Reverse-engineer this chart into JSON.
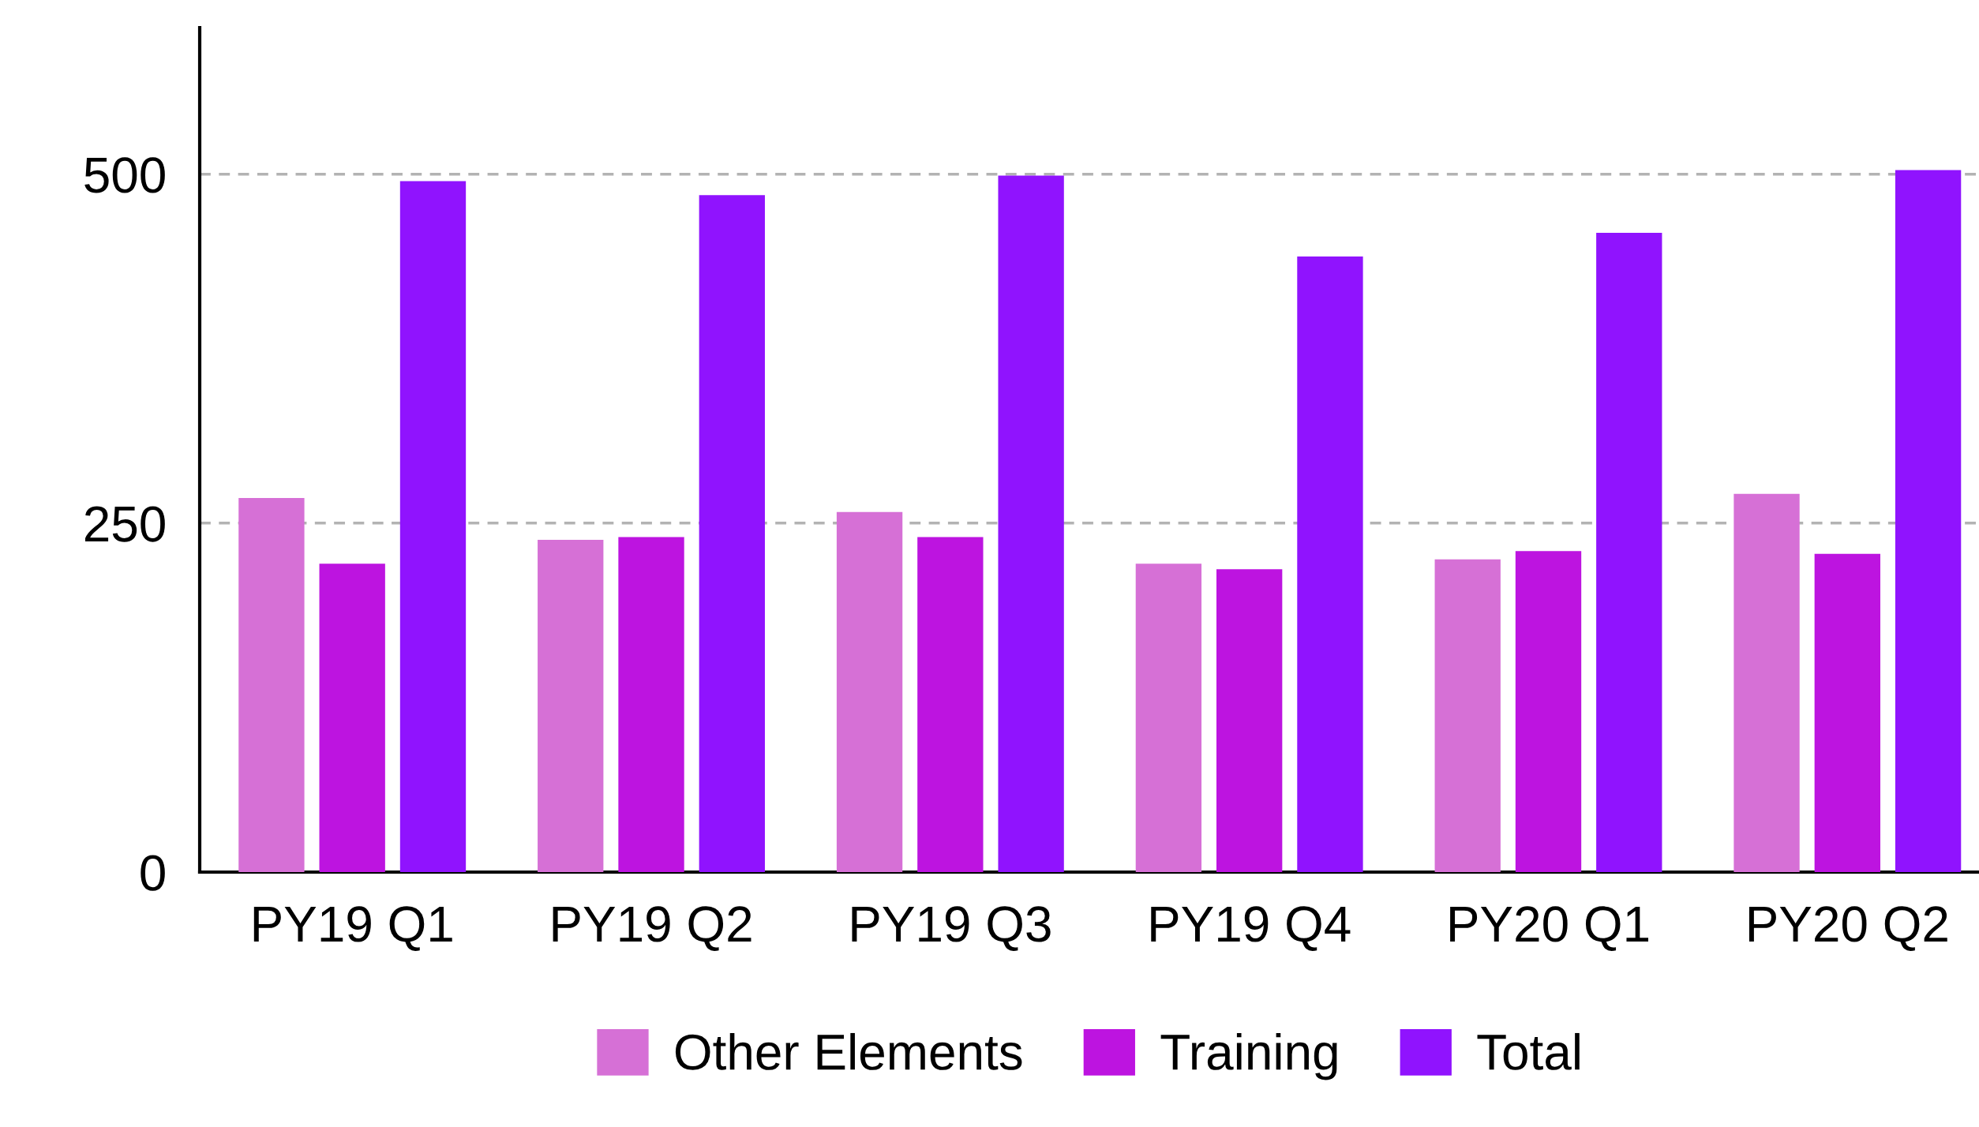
{
  "chart_data": {
    "type": "bar",
    "categories": [
      "PY19 Q1",
      "PY19 Q2",
      "PY19 Q3",
      "PY19 Q4",
      "PY20 Q1",
      "PY20 Q2"
    ],
    "series": [
      {
        "name": "Other Elements",
        "color": "#d670d6",
        "values": [
          268,
          238,
          258,
          221,
          224,
          271
        ]
      },
      {
        "name": "Training",
        "color": "#bd14e0",
        "values": [
          221,
          240,
          240,
          217,
          230,
          228
        ]
      },
      {
        "name": "Total",
        "color": "#9013fe",
        "values": [
          495,
          485,
          499,
          441,
          458,
          503
        ]
      }
    ],
    "ylim": [
      0,
      605
    ],
    "yticks": [
      0,
      250,
      500
    ],
    "grid": "y",
    "legend": "bottom"
  }
}
